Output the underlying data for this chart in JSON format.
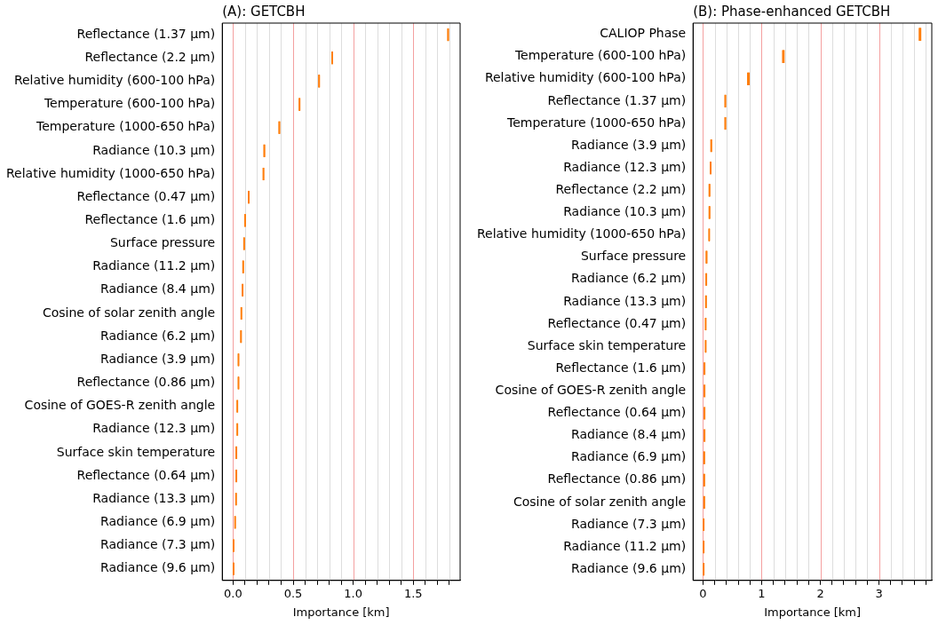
{
  "chart_data": [
    {
      "type": "box",
      "title": "(A): GETCBH",
      "xlabel": "Importance [km]",
      "orientation": "horizontal",
      "color": "#ff7f0e",
      "grid": "x",
      "categories": [
        "Reflectance (1.37 µm)",
        "Reflectance (2.2 µm)",
        "Relative humidity (600-100 hPa)",
        "Temperature (600-100 hPa)",
        "Temperature (1000-650 hPa)",
        "Radiance (10.3 µm)",
        "Relative humidity (1000-650 hPa)",
        "Reflectance (0.47 µm)",
        "Reflectance (1.6 µm)",
        "Surface pressure",
        "Radiance (11.2 µm)",
        "Radiance (8.4 µm)",
        "Cosine of solar zenith angle",
        "Radiance (6.2 µm)",
        "Radiance (3.9 µm)",
        "Reflectance (0.86 µm)",
        "Cosine of GOES-R zenith angle",
        "Radiance (12.3 µm)",
        "Surface skin temperature",
        "Reflectance (0.64 µm)",
        "Radiance (13.3 µm)",
        "Radiance (6.9 µm)",
        "Radiance (7.3 µm)",
        "Radiance (9.6 µm)"
      ],
      "boxes": [
        {
          "low": 1.785,
          "q1": 1.785,
          "median": 1.79,
          "q3": 1.795,
          "high": 1.795
        },
        {
          "low": 0.82,
          "q1": 0.82,
          "median": 0.825,
          "q3": 0.83,
          "high": 0.83
        },
        {
          "low": 0.711,
          "q1": 0.711,
          "median": 0.716,
          "q3": 0.721,
          "high": 0.721
        },
        {
          "low": 0.548,
          "q1": 0.548,
          "median": 0.553,
          "q3": 0.558,
          "high": 0.558
        },
        {
          "low": 0.38,
          "q1": 0.38,
          "median": 0.385,
          "q3": 0.39,
          "high": 0.39
        },
        {
          "low": 0.255,
          "q1": 0.255,
          "median": 0.26,
          "q3": 0.265,
          "high": 0.265
        },
        {
          "low": 0.249,
          "q1": 0.249,
          "median": 0.253,
          "q3": 0.257,
          "high": 0.257
        },
        {
          "low": 0.125,
          "q1": 0.125,
          "median": 0.13,
          "q3": 0.135,
          "high": 0.135
        },
        {
          "low": 0.096,
          "q1": 0.096,
          "median": 0.1,
          "q3": 0.104,
          "high": 0.104
        },
        {
          "low": 0.088,
          "q1": 0.088,
          "median": 0.092,
          "q3": 0.096,
          "high": 0.096
        },
        {
          "low": 0.08,
          "q1": 0.08,
          "median": 0.084,
          "q3": 0.088,
          "high": 0.088
        },
        {
          "low": 0.076,
          "q1": 0.076,
          "median": 0.079,
          "q3": 0.082,
          "high": 0.082
        },
        {
          "low": 0.066,
          "q1": 0.066,
          "median": 0.069,
          "q3": 0.072,
          "high": 0.072
        },
        {
          "low": 0.062,
          "q1": 0.062,
          "median": 0.066,
          "q3": 0.07,
          "high": 0.07
        },
        {
          "low": 0.042,
          "q1": 0.042,
          "median": 0.045,
          "q3": 0.048,
          "high": 0.048
        },
        {
          "low": 0.042,
          "q1": 0.042,
          "median": 0.045,
          "q3": 0.048,
          "high": 0.048
        },
        {
          "low": 0.033,
          "q1": 0.033,
          "median": 0.035,
          "q3": 0.037,
          "high": 0.037
        },
        {
          "low": 0.033,
          "q1": 0.033,
          "median": 0.035,
          "q3": 0.037,
          "high": 0.037
        },
        {
          "low": 0.024,
          "q1": 0.024,
          "median": 0.027,
          "q3": 0.03,
          "high": 0.03
        },
        {
          "low": 0.024,
          "q1": 0.024,
          "median": 0.027,
          "q3": 0.03,
          "high": 0.03
        },
        {
          "low": 0.023,
          "q1": 0.023,
          "median": 0.025,
          "q3": 0.027,
          "high": 0.027
        },
        {
          "low": 0.015,
          "q1": 0.015,
          "median": 0.017,
          "q3": 0.019,
          "high": 0.019
        },
        {
          "low": 0.001,
          "q1": 0.001,
          "median": 0.004,
          "q3": 0.007,
          "high": 0.007
        },
        {
          "low": 0.001,
          "q1": 0.001,
          "median": 0.004,
          "q3": 0.007,
          "high": 0.007
        }
      ],
      "xlim": [
        -0.09,
        1.89
      ],
      "xticks": [
        {
          "value": 0,
          "label": "0.0"
        },
        {
          "value": 0.1,
          "label": null
        },
        {
          "value": 0.2,
          "label": null
        },
        {
          "value": 0.3,
          "label": null
        },
        {
          "value": 0.4,
          "label": null
        },
        0.5,
        {
          "value": 0.6,
          "label": null
        },
        {
          "value": 0.7,
          "label": null
        },
        {
          "value": 0.8,
          "label": null
        },
        {
          "value": 0.9,
          "label": null
        },
        {
          "value": 1,
          "label": "1.0"
        },
        {
          "value": 1.1,
          "label": null
        },
        {
          "value": 1.2,
          "label": null
        },
        {
          "value": 1.3,
          "label": null
        },
        {
          "value": 1.4,
          "label": null
        },
        1.5,
        {
          "value": 1.6,
          "label": null
        },
        {
          "value": 1.7,
          "label": null
        },
        {
          "value": 1.8,
          "label": null
        }
      ]
    },
    {
      "type": "box",
      "title": "(B): Phase-enhanced GETCBH",
      "xlabel": "Importance [km]",
      "orientation": "horizontal",
      "color": "#ff7f0e",
      "grid": "x",
      "categories": [
        "CALIOP Phase",
        "Temperature (600-100 hPa)",
        "Relative humidity (600-100 hPa)",
        "Reflectance (1.37 µm)",
        "Temperature (1000-650 hPa)",
        "Radiance (3.9 µm)",
        "Radiance (12.3 µm)",
        "Reflectance (2.2 µm)",
        "Radiance (10.3 µm)",
        "Relative humidity (1000-650 hPa)",
        "Surface pressure",
        "Radiance (6.2 µm)",
        "Radiance (13.3 µm)",
        "Reflectance (0.47 µm)",
        "Surface skin temperature",
        "Reflectance (1.6 µm)",
        "Cosine of GOES-R zenith angle",
        "Reflectance (0.64 µm)",
        "Radiance (8.4 µm)",
        "Radiance (6.9 µm)",
        "Reflectance (0.86 µm)",
        "Cosine of solar zenith angle",
        "Radiance (7.3 µm)",
        "Radiance (11.2 µm)",
        "Radiance (9.6 µm)"
      ],
      "boxes": [
        {
          "low": 3.68,
          "q1": 3.68,
          "median": 3.7,
          "q3": 3.72,
          "high": 3.72
        },
        {
          "low": 1.35,
          "q1": 1.35,
          "median": 1.37,
          "q3": 1.39,
          "high": 1.39
        },
        {
          "low": 0.755,
          "q1": 0.755,
          "median": 0.775,
          "q3": 0.795,
          "high": 0.795
        },
        {
          "low": 0.37,
          "q1": 0.37,
          "median": 0.38,
          "q3": 0.39,
          "high": 0.39
        },
        {
          "low": 0.37,
          "q1": 0.37,
          "median": 0.38,
          "q3": 0.39,
          "high": 0.39
        },
        {
          "low": 0.13,
          "q1": 0.13,
          "median": 0.14,
          "q3": 0.15,
          "high": 0.15
        },
        {
          "low": 0.12,
          "q1": 0.12,
          "median": 0.13,
          "q3": 0.14,
          "high": 0.14
        },
        {
          "low": 0.1,
          "q1": 0.1,
          "median": 0.11,
          "q3": 0.12,
          "high": 0.12
        },
        {
          "low": 0.1,
          "q1": 0.1,
          "median": 0.11,
          "q3": 0.12,
          "high": 0.12
        },
        {
          "low": 0.1,
          "q1": 0.1,
          "median": 0.105,
          "q3": 0.11,
          "high": 0.11
        },
        {
          "low": 0.05,
          "q1": 0.05,
          "median": 0.06,
          "q3": 0.07,
          "high": 0.07
        },
        {
          "low": 0.05,
          "q1": 0.05,
          "median": 0.055,
          "q3": 0.06,
          "high": 0.06
        },
        {
          "low": 0.04,
          "q1": 0.04,
          "median": 0.05,
          "q3": 0.06,
          "high": 0.06
        },
        {
          "low": 0.04,
          "q1": 0.04,
          "median": 0.045,
          "q3": 0.05,
          "high": 0.05
        },
        {
          "low": 0.04,
          "q1": 0.04,
          "median": 0.045,
          "q3": 0.05,
          "high": 0.05
        },
        {
          "low": 0.02,
          "q1": 0.02,
          "median": 0.025,
          "q3": 0.03,
          "high": 0.03
        },
        {
          "low": 0.02,
          "q1": 0.02,
          "median": 0.025,
          "q3": 0.03,
          "high": 0.03
        },
        {
          "low": 0.02,
          "q1": 0.02,
          "median": 0.025,
          "q3": 0.03,
          "high": 0.03
        },
        {
          "low": 0.02,
          "q1": 0.02,
          "median": 0.025,
          "q3": 0.03,
          "high": 0.03
        },
        {
          "low": 0.01,
          "q1": 0.01,
          "median": 0.02,
          "q3": 0.03,
          "high": 0.03
        },
        {
          "low": 0.01,
          "q1": 0.01,
          "median": 0.02,
          "q3": 0.03,
          "high": 0.03
        },
        {
          "low": 0.01,
          "q1": 0.01,
          "median": 0.02,
          "q3": 0.03,
          "high": 0.03
        },
        {
          "low": 0.0,
          "q1": 0.0,
          "median": 0.01,
          "q3": 0.02,
          "high": 0.02
        },
        {
          "low": 0.0,
          "q1": 0.0,
          "median": 0.01,
          "q3": 0.02,
          "high": 0.02
        },
        {
          "low": 0.0,
          "q1": 0.0,
          "median": 0.01,
          "q3": 0.02,
          "high": 0.02
        }
      ],
      "xlim": [
        -0.17,
        3.9
      ],
      "xticks": [
        {
          "value": 0,
          "label": "0"
        },
        {
          "value": 0.2,
          "label": null
        },
        {
          "value": 0.4,
          "label": null
        },
        {
          "value": 0.6,
          "label": null
        },
        {
          "value": 0.8,
          "label": null
        },
        1,
        {
          "value": 1.2,
          "label": null
        },
        {
          "value": 1.4,
          "label": null
        },
        {
          "value": 1.6,
          "label": null
        },
        {
          "value": 1.8,
          "label": null
        },
        2,
        {
          "value": 2.2,
          "label": null
        },
        {
          "value": 2.4,
          "label": null
        },
        {
          "value": 2.6,
          "label": null
        },
        {
          "value": 2.8,
          "label": null
        },
        3,
        {
          "value": 3.2,
          "label": null
        },
        {
          "value": 3.4,
          "label": null
        },
        {
          "value": 3.6,
          "label": null
        },
        {
          "value": 3.8,
          "label": null
        }
      ]
    }
  ]
}
